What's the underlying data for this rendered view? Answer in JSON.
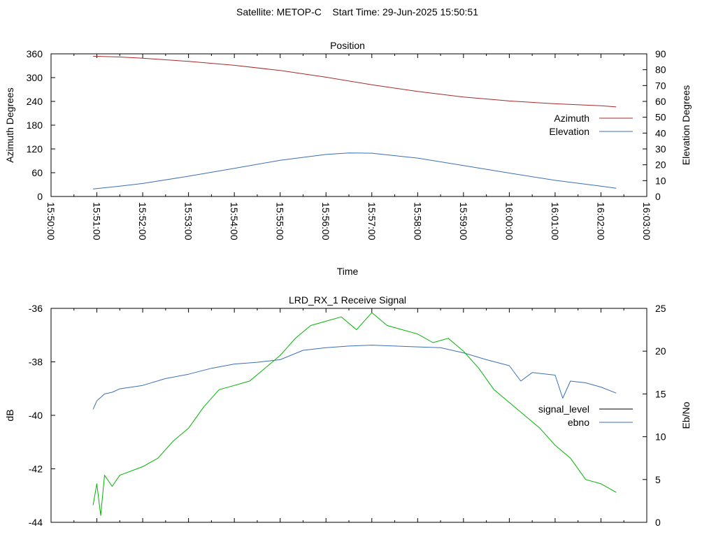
{
  "page": {
    "title": "Satellite: METOP-C    Start Time: 29-Jun-2025 15:50:51"
  },
  "chart_data": [
    {
      "type": "line",
      "title": "Position",
      "xlabel": "Time",
      "ylabel": "Azimuth Degrees",
      "y2label": "Elevation Degrees",
      "xticks": [
        "15:50:00",
        "15:51:00",
        "15:52:00",
        "15:53:00",
        "15:54:00",
        "15:55:00",
        "15:56:00",
        "15:57:00",
        "15:58:00",
        "15:59:00",
        "16:00:00",
        "16:01:00",
        "16:02:00",
        "16:03:00"
      ],
      "xlim": [
        "15:50:00",
        "16:03:00"
      ],
      "ylim": [
        0,
        360
      ],
      "y2lim": [
        0,
        90
      ],
      "yticks": [
        0,
        60,
        120,
        180,
        240,
        300,
        360
      ],
      "y2ticks": [
        0,
        10,
        20,
        30,
        40,
        50,
        60,
        70,
        80,
        90
      ],
      "grid": false,
      "legend_position": "right",
      "series": [
        {
          "name": "Azimuth",
          "axis": "left",
          "color": "#a52a2a",
          "points": [
            [
              "15:50:55",
              354
            ],
            [
              "15:51:30",
              352
            ],
            [
              "15:52:00",
              349
            ],
            [
              "15:53:00",
              341
            ],
            [
              "15:54:00",
              331
            ],
            [
              "15:55:00",
              318
            ],
            [
              "15:56:00",
              301
            ],
            [
              "15:57:00",
              282
            ],
            [
              "15:58:00",
              265
            ],
            [
              "15:59:00",
              251
            ],
            [
              "16:00:00",
              241
            ],
            [
              "16:01:00",
              234
            ],
            [
              "16:02:00",
              229
            ],
            [
              "16:02:20",
              226
            ]
          ]
        },
        {
          "name": "Elevation",
          "axis": "right",
          "color": "#3a6fb5",
          "points": [
            [
              "15:50:55",
              4.7
            ],
            [
              "15:51:30",
              6.5
            ],
            [
              "15:52:00",
              8.2
            ],
            [
              "15:53:00",
              12.8
            ],
            [
              "15:54:00",
              17.8
            ],
            [
              "15:55:00",
              22.8
            ],
            [
              "15:56:00",
              26.5
            ],
            [
              "15:56:30",
              27.5
            ],
            [
              "15:57:00",
              27.3
            ],
            [
              "15:58:00",
              24.2
            ],
            [
              "15:59:00",
              19.5
            ],
            [
              "16:00:00",
              14.8
            ],
            [
              "16:01:00",
              10.2
            ],
            [
              "16:02:00",
              6.5
            ],
            [
              "16:02:20",
              5.2
            ]
          ]
        }
      ]
    },
    {
      "type": "line",
      "title": "LRD_RX_1 Receive Signal",
      "ylabel": "dB",
      "y2label": "Eb/No",
      "xlim": [
        "15:50:00",
        "16:03:00"
      ],
      "ylim": [
        -44,
        -36
      ],
      "y2lim": [
        0,
        25
      ],
      "yticks": [
        -44,
        -42,
        -40,
        -38,
        -36
      ],
      "y2ticks": [
        0,
        5,
        10,
        15,
        20,
        25
      ],
      "grid": false,
      "legend_position": "right",
      "series": [
        {
          "name": "signal_level",
          "axis": "left",
          "color": "#000000",
          "points": []
        },
        {
          "name": "ebno",
          "axis": "right",
          "color": "#3a6fb5",
          "points": [
            [
              "15:50:55",
              13.2
            ],
            [
              "15:51:00",
              14.2
            ],
            [
              "15:51:10",
              15.0
            ],
            [
              "15:51:20",
              15.2
            ],
            [
              "15:51:30",
              15.6
            ],
            [
              "15:52:00",
              16.0
            ],
            [
              "15:52:30",
              16.8
            ],
            [
              "15:53:00",
              17.3
            ],
            [
              "15:53:30",
              18.0
            ],
            [
              "15:54:00",
              18.5
            ],
            [
              "15:54:30",
              18.7
            ],
            [
              "15:55:00",
              19.0
            ],
            [
              "15:55:30",
              20.1
            ],
            [
              "15:56:00",
              20.4
            ],
            [
              "15:56:30",
              20.6
            ],
            [
              "15:57:00",
              20.7
            ],
            [
              "15:57:30",
              20.6
            ],
            [
              "15:58:00",
              20.5
            ],
            [
              "15:58:30",
              20.4
            ],
            [
              "15:59:00",
              19.8
            ],
            [
              "15:59:30",
              19.0
            ],
            [
              "16:00:00",
              18.3
            ],
            [
              "16:00:15",
              16.5
            ],
            [
              "16:00:30",
              17.5
            ],
            [
              "16:01:00",
              17.2
            ],
            [
              "16:01:10",
              14.5
            ],
            [
              "16:01:20",
              16.5
            ],
            [
              "16:01:40",
              16.3
            ],
            [
              "16:02:00",
              15.8
            ],
            [
              "16:02:20",
              15.1
            ]
          ]
        },
        {
          "name": "",
          "axis": "right",
          "color": "#00b400",
          "points": [
            [
              "15:50:55",
              2.0
            ],
            [
              "15:51:00",
              4.5
            ],
            [
              "15:51:05",
              0.8
            ],
            [
              "15:51:10",
              5.5
            ],
            [
              "15:51:20",
              4.2
            ],
            [
              "15:51:30",
              5.5
            ],
            [
              "15:52:00",
              6.5
            ],
            [
              "15:52:20",
              7.5
            ],
            [
              "15:52:40",
              9.5
            ],
            [
              "15:53:00",
              11.0
            ],
            [
              "15:53:20",
              13.5
            ],
            [
              "15:53:40",
              15.5
            ],
            [
              "15:54:00",
              16.0
            ],
            [
              "15:54:20",
              16.5
            ],
            [
              "15:54:40",
              18.0
            ],
            [
              "15:55:00",
              19.5
            ],
            [
              "15:55:20",
              21.5
            ],
            [
              "15:55:40",
              23.0
            ],
            [
              "15:56:00",
              23.5
            ],
            [
              "15:56:20",
              24.0
            ],
            [
              "15:56:40",
              22.5
            ],
            [
              "15:57:00",
              24.5
            ],
            [
              "15:57:20",
              23.0
            ],
            [
              "15:57:40",
              22.5
            ],
            [
              "15:58:00",
              22.0
            ],
            [
              "15:58:20",
              21.0
            ],
            [
              "15:58:40",
              21.5
            ],
            [
              "15:59:00",
              20.0
            ],
            [
              "15:59:20",
              18.0
            ],
            [
              "15:59:40",
              15.5
            ],
            [
              "16:00:00",
              14.0
            ],
            [
              "16:00:20",
              12.5
            ],
            [
              "16:00:40",
              11.0
            ],
            [
              "16:01:00",
              9.0
            ],
            [
              "16:01:20",
              7.5
            ],
            [
              "16:01:40",
              5.0
            ],
            [
              "16:02:00",
              4.5
            ],
            [
              "16:02:20",
              3.5
            ]
          ]
        }
      ]
    }
  ]
}
